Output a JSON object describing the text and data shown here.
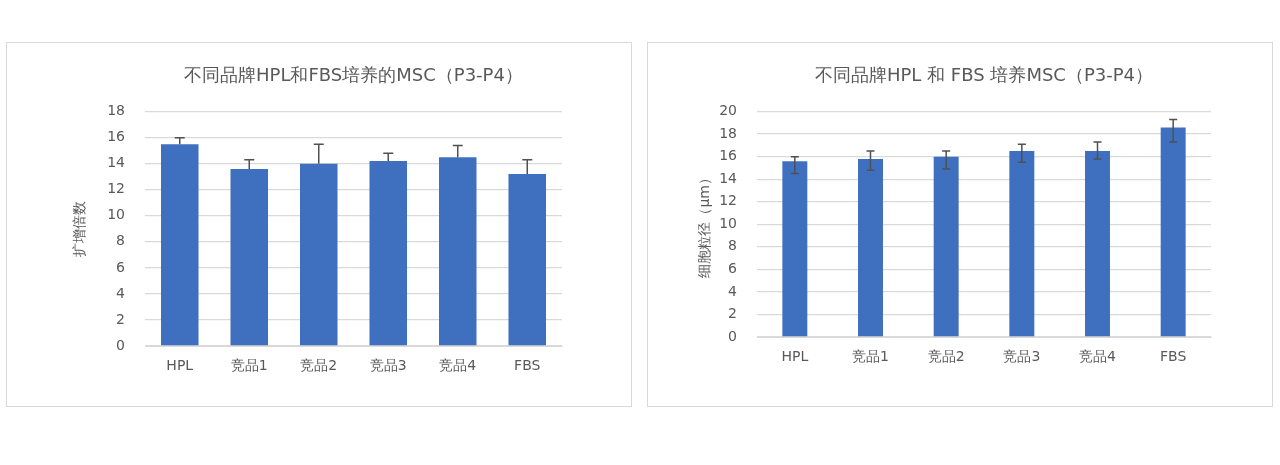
{
  "chart_data": [
    {
      "type": "bar",
      "title": "不同品牌HPL和FBS培养的MSC（P3-P4）",
      "ylabel": "扩增倍数",
      "categories": [
        "HPL",
        "竞品1",
        "竞品2",
        "竞品3",
        "竞品4",
        "FBS"
      ],
      "series": [
        {
          "color": "#3f70bf",
          "values": [
            15.5,
            13.6,
            14.0,
            14.2,
            14.5,
            13.2
          ],
          "errors": [
            [
              15.5,
              16.0
            ],
            [
              13.6,
              14.3
            ],
            [
              14.0,
              15.5
            ],
            [
              14.2,
              14.8
            ],
            [
              14.5,
              15.4
            ],
            [
              13.2,
              14.3
            ]
          ]
        }
      ],
      "ylim": [
        0,
        18
      ],
      "yticks": [
        0,
        2,
        4,
        6,
        8,
        10,
        12,
        14,
        16,
        18
      ],
      "grid": "y"
    },
    {
      "type": "bar",
      "title": "不同品牌HPL 和 FBS 培养MSC（P3-P4）",
      "ylabel": "细胞粒径（μm）",
      "categories": [
        "HPL",
        "竞品1",
        "竞品2",
        "竞品3",
        "竞品4",
        "FBS"
      ],
      "series": [
        {
          "color": "#3f70bf",
          "values": [
            15.6,
            15.8,
            16.0,
            16.5,
            16.5,
            18.6
          ],
          "errors": [
            [
              14.5,
              16.0
            ],
            [
              14.8,
              16.5
            ],
            [
              14.9,
              16.5
            ],
            [
              15.5,
              17.1
            ],
            [
              15.8,
              17.3
            ],
            [
              17.3,
              19.3
            ]
          ]
        }
      ],
      "ylim": [
        0,
        20
      ],
      "yticks": [
        0,
        2,
        4,
        6,
        8,
        10,
        12,
        14,
        16,
        18,
        20
      ],
      "grid": "y"
    }
  ]
}
